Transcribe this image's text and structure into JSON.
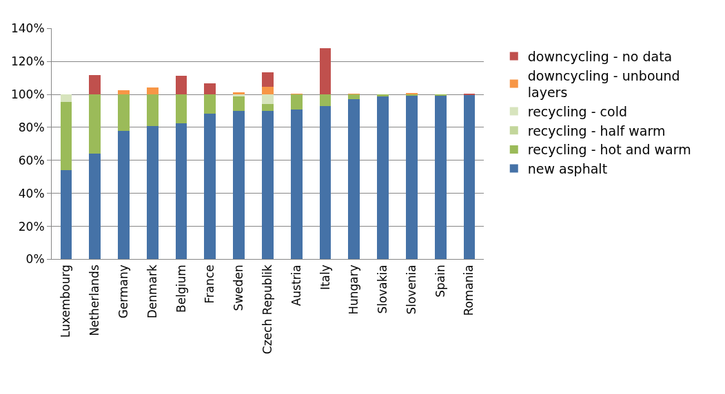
{
  "chart_data": {
    "type": "bar",
    "stacked": true,
    "categories": [
      "Luxembourg",
      "Netherlands",
      "Germany",
      "Denmark",
      "Belgium",
      "France",
      "Sweden",
      "Czech Republik",
      "Austria",
      "Italy",
      "Hungary",
      "Slovakia",
      "Slovenia",
      "Spain",
      "Romania"
    ],
    "series": [
      {
        "name": "new asphalt",
        "color": "#4572a7",
        "values": [
          54,
          64.1,
          78,
          80.6,
          82.3,
          88.4,
          89.8,
          90.1,
          90.9,
          93,
          97,
          98.8,
          99.3,
          99.4,
          99.7
        ]
      },
      {
        "name": "recycling - hot and warm",
        "color": "#9bbb59",
        "values": [
          41.5,
          35.9,
          22,
          19.4,
          17.7,
          11.6,
          8.8,
          4.1,
          9.1,
          7,
          3,
          1.2,
          0.7,
          0.6,
          null
        ]
      },
      {
        "name": "recycling - half warm",
        "color": "#c3d69b",
        "values": [
          null,
          null,
          null,
          null,
          null,
          null,
          null,
          null,
          null,
          null,
          null,
          null,
          null,
          null,
          null
        ]
      },
      {
        "name": "recycling - cold",
        "color": "#d7e4bd",
        "values": [
          4.5,
          null,
          null,
          null,
          null,
          null,
          1.4,
          5.8,
          null,
          null,
          null,
          null,
          null,
          null,
          null
        ]
      },
      {
        "name": "downcycling - unbound layers",
        "color": "#f79646",
        "values": [
          null,
          null,
          2.5,
          4,
          null,
          null,
          1.1,
          4.8,
          0.3,
          null,
          0.3,
          null,
          0.8,
          null,
          null
        ]
      },
      {
        "name": "downcycling - no data",
        "color": "#c0504d",
        "values": [
          null,
          11.6,
          null,
          null,
          11.4,
          6.6,
          null,
          8.7,
          null,
          27.8,
          null,
          null,
          null,
          null,
          0.3
        ]
      }
    ],
    "ylim": [
      0,
      140
    ],
    "yticks": [
      {
        "value": 0,
        "label": "0%"
      },
      {
        "value": 20,
        "label": "20%"
      },
      {
        "value": 40,
        "label": "40%"
      },
      {
        "value": 60,
        "label": "60%"
      },
      {
        "value": 80,
        "label": "80%"
      },
      {
        "value": 100,
        "label": "100%"
      },
      {
        "value": 120,
        "label": "120%"
      },
      {
        "value": 140,
        "label": "140%"
      }
    ],
    "grid": "y",
    "legend": "right"
  }
}
